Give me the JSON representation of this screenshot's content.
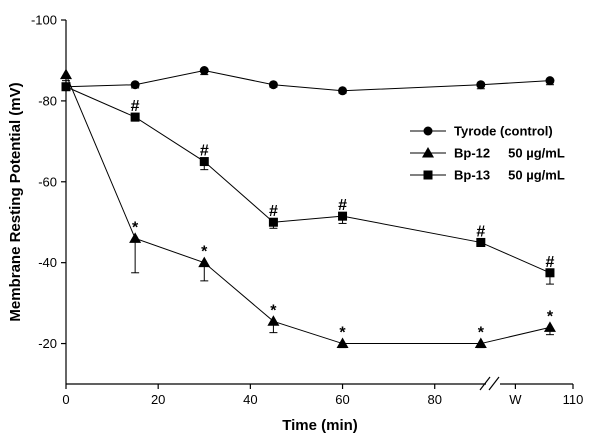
{
  "chart_data": {
    "type": "line",
    "xlabel": "Time (min)",
    "ylabel": "Membrane Resting Potential (mV)",
    "xlim": [
      0,
      110
    ],
    "ylim": [
      -10,
      -100
    ],
    "x_ticks": [
      {
        "value": 0,
        "label": "0"
      },
      {
        "value": 20,
        "label": "20"
      },
      {
        "value": 40,
        "label": "40"
      },
      {
        "value": 60,
        "label": "60"
      },
      {
        "value": 80,
        "label": "80"
      },
      {
        "value": 97.5,
        "label": "W"
      },
      {
        "value": 110,
        "label": "110"
      }
    ],
    "y_ticks": [
      {
        "value": -20,
        "label": "-20"
      },
      {
        "value": -40,
        "label": "-40"
      },
      {
        "value": -60,
        "label": "-60"
      },
      {
        "value": -80,
        "label": "-80"
      },
      {
        "value": -100,
        "label": "-100"
      }
    ],
    "axis_break_x": 93,
    "legend_placement": "right",
    "series": [
      {
        "name": "Tyrode (control)",
        "marker": "circle",
        "x": [
          0,
          15,
          30,
          45,
          60,
          90,
          105
        ],
        "y": [
          -83.5,
          -84,
          -87.5,
          -84,
          -82.5,
          -84,
          -85
        ],
        "err": [
          0.5,
          0.8,
          1.0,
          0.6,
          0.6,
          1.0,
          1.0
        ],
        "sig": [
          "",
          "",
          "",
          "",
          "",
          "",
          ""
        ]
      },
      {
        "name": "Bp-12     50 µg/mL",
        "marker": "triangle",
        "x": [
          0,
          15,
          30,
          45,
          60,
          90,
          105
        ],
        "y": [
          -86.5,
          -46,
          -40,
          -25.5,
          -20,
          -20,
          -24
        ],
        "err": [
          1.5,
          8.5,
          4.5,
          2.8,
          1.0,
          1.0,
          1.8
        ],
        "sig": [
          "",
          "*",
          "*",
          "*",
          "*",
          "*",
          "*"
        ]
      },
      {
        "name": "Bp-13     50 µg/mL",
        "marker": "square",
        "x": [
          0,
          15,
          30,
          45,
          60,
          90,
          105
        ],
        "y": [
          -83.5,
          -76,
          -65,
          -50,
          -51.5,
          -45,
          -37.5
        ],
        "err": [
          0.5,
          1.0,
          2.0,
          1.5,
          1.8,
          1.0,
          2.8
        ],
        "sig": [
          "",
          "#",
          "#",
          "#",
          "#",
          "#",
          "#"
        ]
      }
    ]
  }
}
